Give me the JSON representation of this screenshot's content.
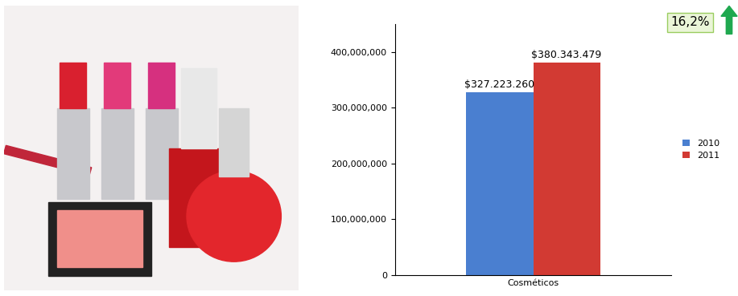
{
  "chart_data": {
    "type": "bar",
    "categories": [
      "Cosméticos"
    ],
    "series": [
      {
        "name": "2010",
        "color": "#4a7fd0",
        "values": [
          327223260
        ],
        "value_labels": [
          "$327.223.260"
        ]
      },
      {
        "name": "2011",
        "color": "#d23a33",
        "values": [
          380343479
        ],
        "value_labels": [
          "$380.343.479"
        ]
      }
    ],
    "ylim": [
      0,
      450000000
    ],
    "yticks": [
      0,
      {
        "value": 100000000,
        "label": "100,000,000"
      },
      {
        "value": 200000000,
        "label": "200,000,000"
      },
      {
        "value": 300000000,
        "label": "300,000,000"
      },
      {
        "value": 400000000,
        "label": "400,000,000"
      }
    ],
    "grid": false,
    "data_labels": true,
    "legend": "right",
    "annotation": "16,2%"
  }
}
